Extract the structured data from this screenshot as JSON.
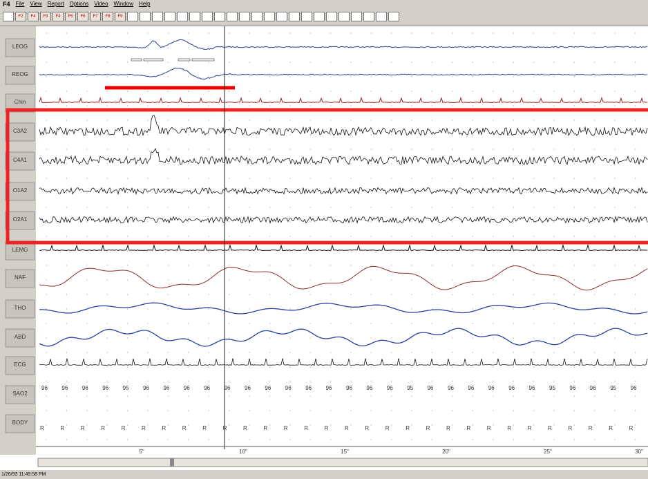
{
  "menu": {
    "app": "F4",
    "items": [
      "File",
      "View",
      "Report",
      "Options",
      "Video",
      "Window",
      "Help"
    ]
  },
  "toolbar": {
    "buttons": [
      "F2",
      "F4",
      "F3",
      "F4",
      "F5",
      "F6",
      "F7",
      "F8",
      "F9"
    ]
  },
  "channels": [
    "LEOG",
    "REOG",
    "Chin",
    "C3A2",
    "C4A1",
    "O1A2",
    "O2A1",
    "LEMG",
    "NAF",
    "THO",
    "ABD",
    "ECG",
    "SAO2",
    "BODY"
  ],
  "sao2_values": [
    96,
    96,
    96,
    96,
    95,
    96,
    96,
    96,
    96,
    96,
    96,
    96,
    96,
    96,
    96,
    96,
    96,
    96,
    95,
    96,
    96,
    96,
    96,
    96,
    96,
    95,
    96,
    96,
    95,
    96
  ],
  "body_positions": [
    "R",
    "R",
    "R",
    "R",
    "R",
    "R",
    "R",
    "R",
    "R",
    "R",
    "R",
    "R",
    "R",
    "R",
    "R",
    "R",
    "R",
    "R",
    "R",
    "R",
    "R",
    "R",
    "R",
    "R",
    "R",
    "R",
    "R",
    "R",
    "R",
    "R"
  ],
  "time_axis": [
    "5\"",
    "10\"",
    "15\"",
    "20\"",
    "25\"",
    "30\""
  ],
  "status": {
    "timestamp": "1/26/93 11:49:58 PM"
  }
}
